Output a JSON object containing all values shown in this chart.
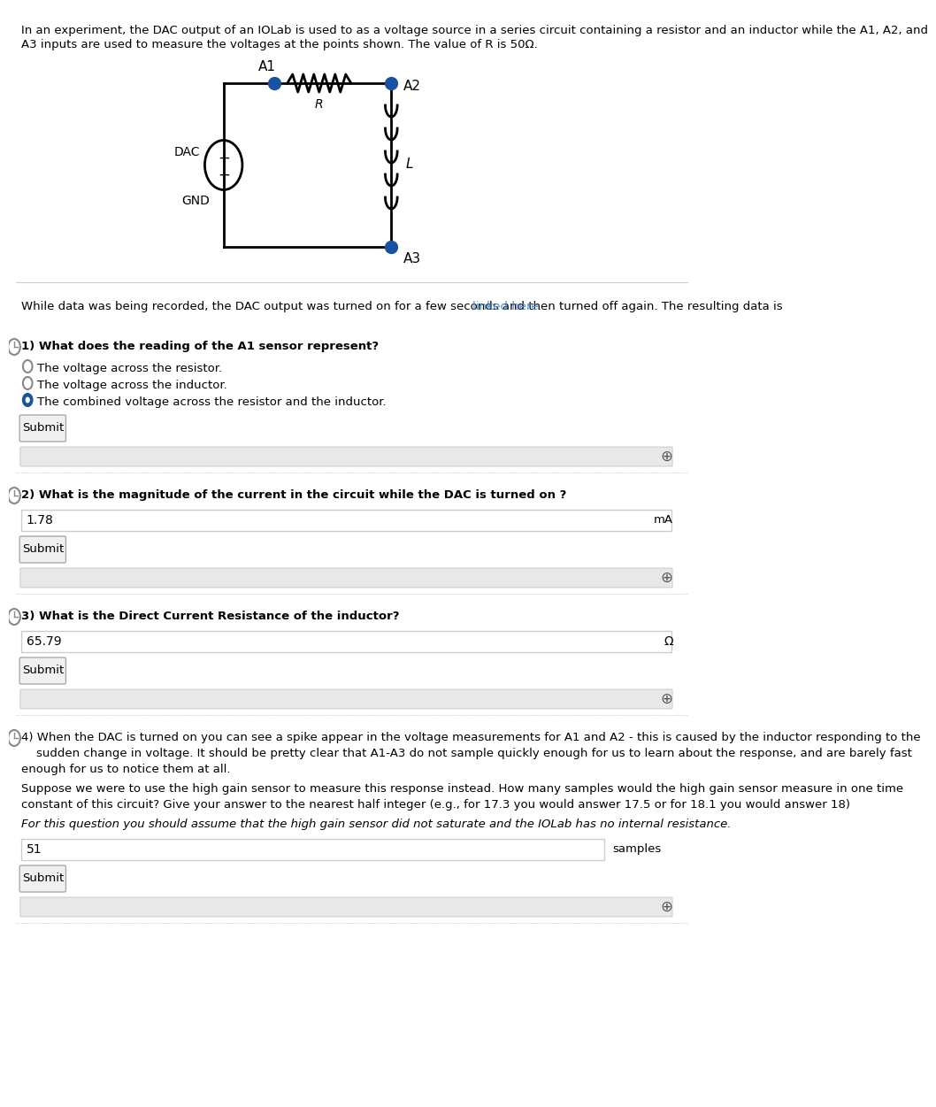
{
  "bg_color": "#ffffff",
  "text_color": "#000000",
  "link_color": "#4a90d9",
  "intro_text": "In an experiment, the DAC output of an IOLab is used to as a voltage source in a series circuit containing a resistor and an inductor while the A1, A2, and\nA3 inputs are used to measure the voltages at the points shown. The value of R is 50Ω.",
  "while_text": "While data was being recorded, the DAC output was turned on for a few seconds and then turned off again. The resulting data is ",
  "link_text": "linked here.",
  "q1_text": "1) What does the reading of the A1 sensor represent?",
  "q1_opt1": "The voltage across the resistor.",
  "q1_opt2": "The voltage across the inductor.",
  "q1_opt3": "The combined voltage across the resistor and the inductor.",
  "q2_text": "2) What is the magnitude of the current in the circuit while the DAC is turned on ?",
  "q2_answer": "1.78",
  "q2_unit": "mA",
  "q3_text": "3) What is the Direct Current Resistance of the inductor?",
  "q3_answer": "65.79",
  "q3_unit": "Ω",
  "q4_text_line1": "4) When the DAC is turned on you can see a spike appear in the voltage measurements for A1 and A2 - this is caused by the inductor responding to the",
  "q4_text_line2": "    sudden change in voltage. It should be pretty clear that A1-A3 do not sample quickly enough for us to learn about the response, and are barely fast",
  "q4_text_line3": "enough for us to notice them at all.",
  "q4_text2": "Suppose we were to use the high gain sensor to measure this response instead. How many samples would the high gain sensor measure in one time\nconstant of this circuit? Give your answer to the nearest half integer (e.g., for 17.3 you would answer 17.5 or for 18.1 you would answer 18)",
  "q4_italic": "For this question you should assume that the high gain sensor did not saturate and the IOLab has no internal resistance.",
  "q4_answer": "51",
  "q4_unit": "samples",
  "submit_text": "Submit"
}
